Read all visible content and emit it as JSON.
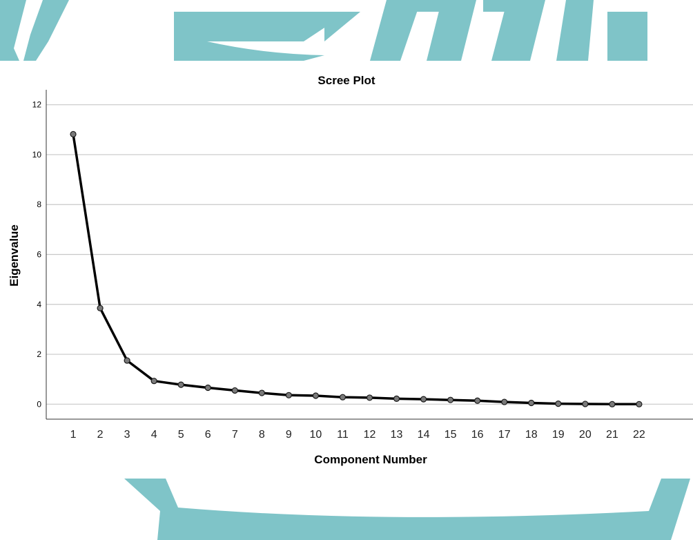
{
  "colors": {
    "watermark": "#7fc4c8",
    "gridline": "#c8c8c8",
    "axis": "#333333",
    "line": "#000000",
    "marker_fill": "#7a7a7a",
    "marker_stroke": "#1a1a1a"
  },
  "chart_data": {
    "type": "line",
    "title": "Scree Plot",
    "xlabel": "Component Number",
    "ylabel": "Eigenvalue",
    "x": [
      1,
      2,
      3,
      4,
      5,
      6,
      7,
      8,
      9,
      10,
      11,
      12,
      13,
      14,
      15,
      16,
      17,
      18,
      19,
      20,
      21,
      22
    ],
    "series": [
      {
        "values": [
          10.82,
          3.85,
          1.75,
          0.93,
          0.78,
          0.66,
          0.55,
          0.45,
          0.36,
          0.34,
          0.28,
          0.26,
          0.22,
          0.2,
          0.17,
          0.14,
          0.09,
          0.05,
          0.02,
          0.01,
          0.0,
          0.0
        ]
      }
    ],
    "xlim": [
      0,
      24
    ],
    "ylim": [
      -0.6,
      12.6
    ],
    "yticks": [
      0,
      2,
      4,
      6,
      8,
      10,
      12
    ],
    "grid": true,
    "legend": "none"
  }
}
